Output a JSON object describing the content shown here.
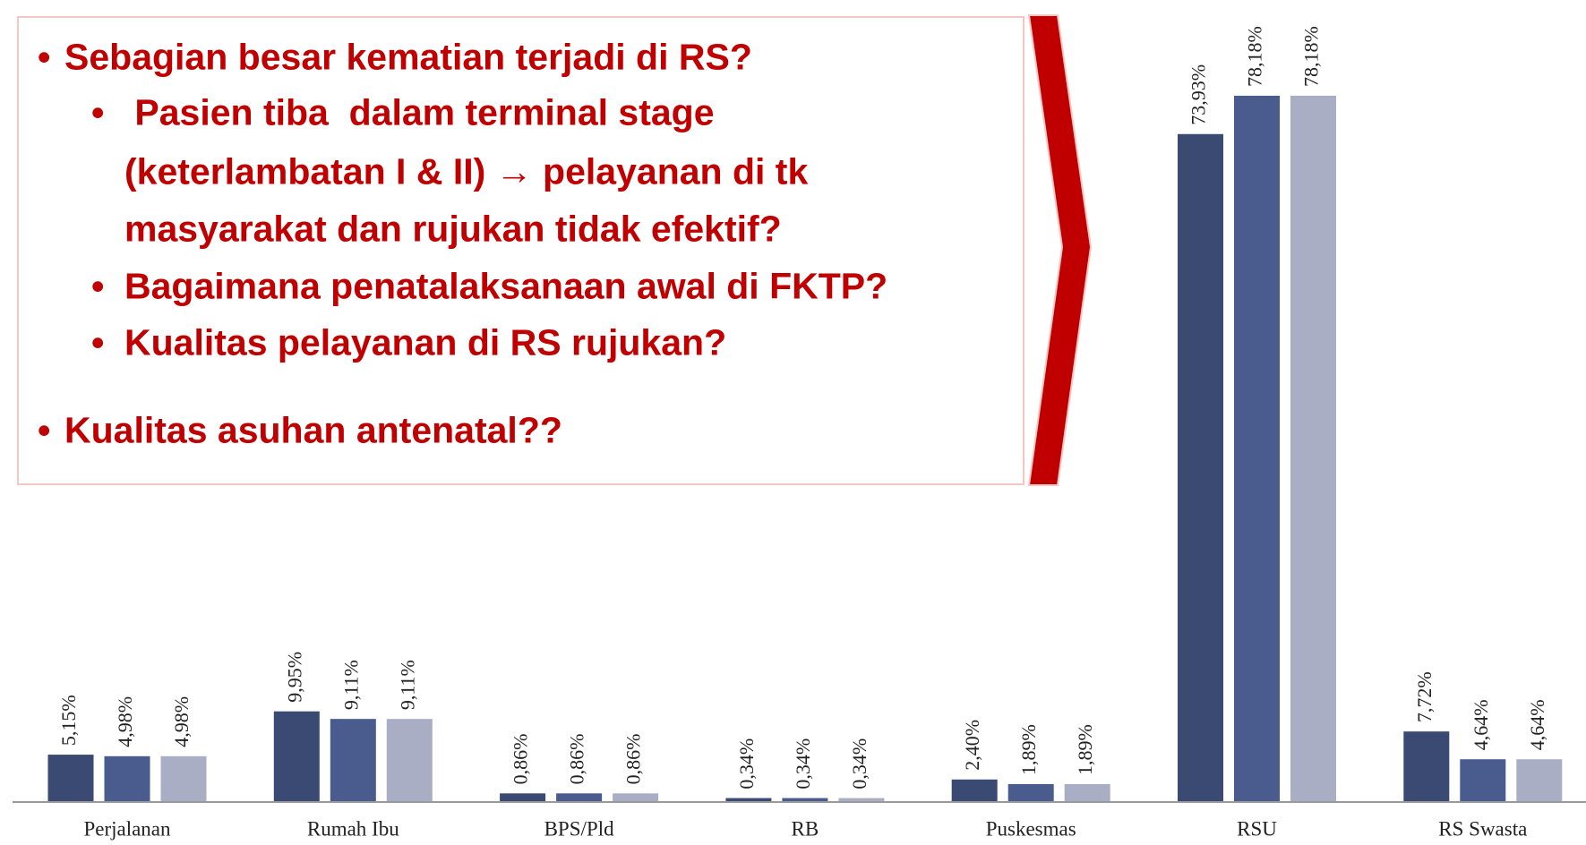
{
  "callout": {
    "items": [
      {
        "level": 1,
        "lines": [
          "Sebagian besar kematian terjadi di RS?"
        ]
      },
      {
        "level": 2,
        "lines": [
          " Pasien tiba  dalam terminal stage",
          "(keterlambatan I & II) → pelayanan di tk",
          "masyarakat dan rujukan tidak efektif?"
        ]
      },
      {
        "level": 2,
        "lines": [
          "Bagaimana penatalaksanaan awal di FKTP?"
        ]
      },
      {
        "level": 2,
        "lines": [
          "Kualitas pelayanan di RS rujukan?"
        ]
      },
      {
        "level": 1,
        "lines": [
          "Kualitas asuhan antenatal??"
        ]
      }
    ]
  },
  "chart_data": {
    "type": "bar",
    "categories": [
      "Perjalanan",
      "Rumah Ibu",
      "BPS/Pld",
      "RB",
      "Puskesmas",
      "RSU",
      "RS Swasta"
    ],
    "series": [
      {
        "color": "#3b4a73",
        "values": [
          5.15,
          9.95,
          0.86,
          0.34,
          2.4,
          73.93,
          7.72
        ],
        "value_labels": [
          "5,15%",
          "9,95%",
          "0,86%",
          "0,34%",
          "2,40%",
          "73,93%",
          "7,72%"
        ]
      },
      {
        "color": "#4a5b8e",
        "values": [
          4.98,
          9.11,
          0.86,
          0.34,
          1.89,
          78.18,
          4.64
        ],
        "value_labels": [
          "4,98%",
          "9,11%",
          "0,86%",
          "0,34%",
          "1,89%",
          "78,18%",
          "4,64%"
        ]
      },
      {
        "color": "#a9aec4",
        "values": [
          4.98,
          9.11,
          0.86,
          0.34,
          1.89,
          78.18,
          4.64
        ],
        "value_labels": [
          "4,98%",
          "9,11%",
          "0,86%",
          "0,34%",
          "1,89%",
          "78,18%",
          "4,64%"
        ]
      }
    ]
  }
}
